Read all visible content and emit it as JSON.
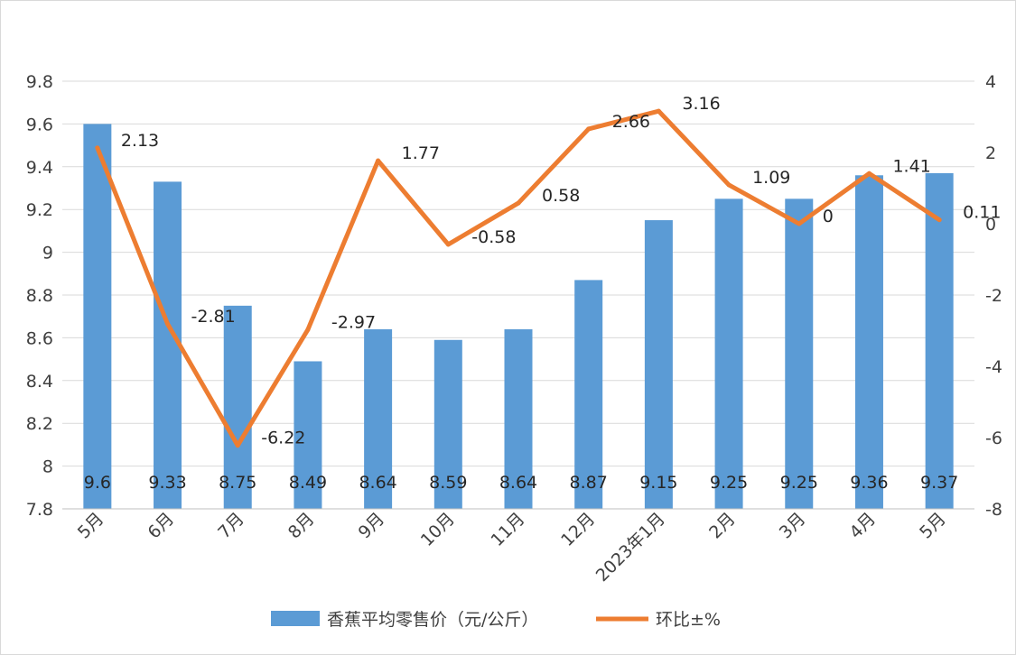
{
  "chart_data": {
    "type": "bar",
    "categories": [
      "5月",
      "6月",
      "7月",
      "8月",
      "9月",
      "10月",
      "11月",
      "12月",
      "2023年1月",
      "2月",
      "3月",
      "4月",
      "5月"
    ],
    "series": [
      {
        "name": "香蕉平均零售价（元/公斤）",
        "type": "bar",
        "axis": "left",
        "color": "#5B9BD5",
        "values": [
          9.6,
          9.33,
          8.75,
          8.49,
          8.64,
          8.59,
          8.64,
          8.87,
          9.15,
          9.25,
          9.25,
          9.36,
          9.37
        ],
        "labels": [
          "9.6",
          "9.33",
          "8.75",
          "8.49",
          "8.64",
          "8.59",
          "8.64",
          "8.87",
          "9.15",
          "9.25",
          "9.25",
          "9.36",
          "9.37"
        ]
      },
      {
        "name": "环比±%",
        "type": "line",
        "axis": "right",
        "color": "#ED7D31",
        "values": [
          2.13,
          -2.81,
          -6.22,
          -2.97,
          1.77,
          -0.58,
          0.58,
          2.66,
          3.16,
          1.09,
          0,
          1.41,
          0.11
        ],
        "labels": [
          "2.13",
          "-2.81",
          "-6.22",
          "-2.97",
          "1.77",
          "-0.58",
          "0.58",
          "2.66",
          "3.16",
          "1.09",
          "0",
          "1.41",
          "0.11"
        ]
      }
    ],
    "y_left": {
      "ylim": [
        7.8,
        9.8
      ],
      "ticks": [
        7.8,
        8,
        8.2,
        8.4,
        8.6,
        8.8,
        9,
        9.2,
        9.4,
        9.6,
        9.8
      ],
      "tick_labels": [
        "7.8",
        "8",
        "8.2",
        "8.4",
        "8.6",
        "8.8",
        "9",
        "9.2",
        "9.4",
        "9.6",
        "9.8"
      ]
    },
    "y_right": {
      "ylim": [
        -8,
        4
      ],
      "ticks": [
        -8,
        -6,
        -4,
        -2,
        0,
        2,
        4
      ],
      "tick_labels": [
        "-8",
        "-6",
        "-4",
        "-2",
        "0",
        "2",
        "4"
      ]
    },
    "grid": true,
    "legend": "bottom",
    "title": "",
    "xlabel": "",
    "ylabel": ""
  }
}
